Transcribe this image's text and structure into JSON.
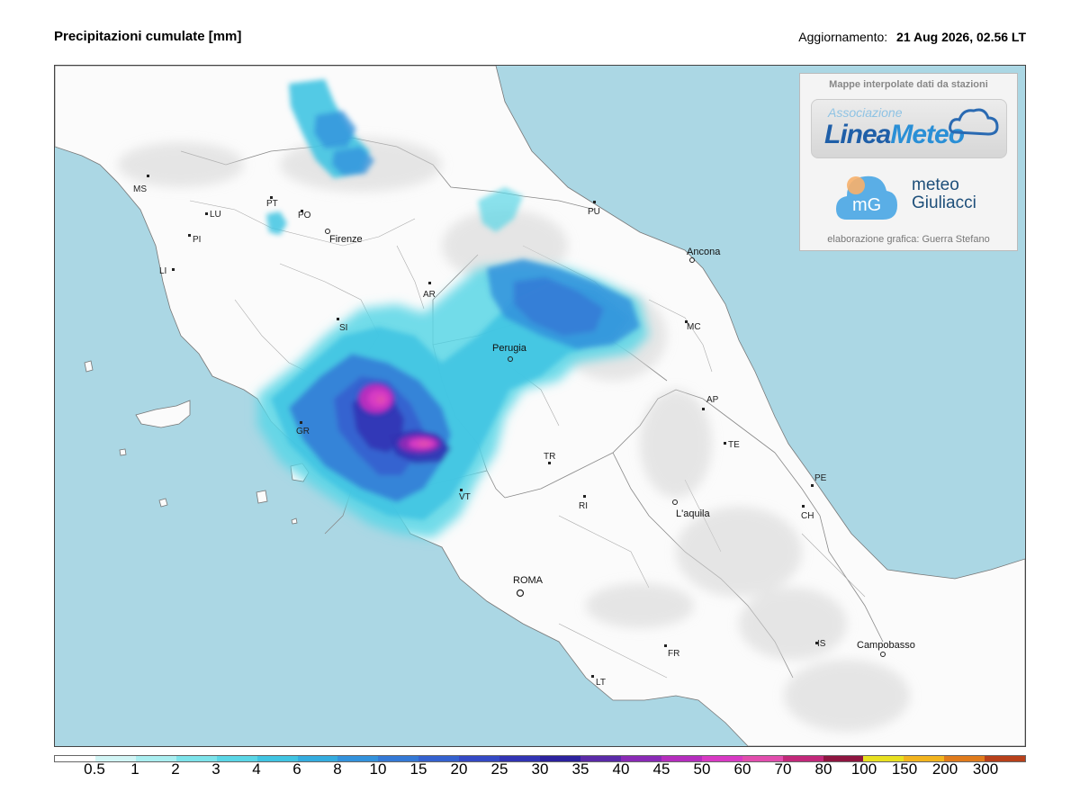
{
  "header": {
    "title": "Precipitazioni cumulate [mm]",
    "update_label": "Aggiornamento:",
    "update_value": "21 Aug 2026, 02.56 LT"
  },
  "infobox": {
    "header": "Mappe interpolate dati da stazioni",
    "logo1_assoc": "Associazione",
    "logo1_linea": "Linea",
    "logo1_meteo": "Meteo",
    "logo2_line1": "meteo",
    "logo2_line2": "Giuliacci",
    "logo2_mark": "mG",
    "credit": "elaborazione grafica: Guerra Stefano"
  },
  "map": {
    "sea_color": "#abd7e4",
    "land_color": "#fbfbfb",
    "cities": [
      {
        "name": "MS"
      },
      {
        "name": "LU"
      },
      {
        "name": "PT"
      },
      {
        "name": "PO"
      },
      {
        "name": "PI"
      },
      {
        "name": "LI"
      },
      {
        "name": "Firenze"
      },
      {
        "name": "AR"
      },
      {
        "name": "SI"
      },
      {
        "name": "GR"
      },
      {
        "name": "Perugia"
      },
      {
        "name": "PU"
      },
      {
        "name": "Ancona"
      },
      {
        "name": "MC"
      },
      {
        "name": "AP"
      },
      {
        "name": "TE"
      },
      {
        "name": "TR"
      },
      {
        "name": "VT"
      },
      {
        "name": "RI"
      },
      {
        "name": "L'aquila"
      },
      {
        "name": "PE"
      },
      {
        "name": "CH"
      },
      {
        "name": "ROMA"
      },
      {
        "name": "FR"
      },
      {
        "name": "LT"
      },
      {
        "name": "IS"
      },
      {
        "name": "Campobasso"
      }
    ]
  },
  "legend": {
    "labels": [
      "0.5",
      "1",
      "2",
      "3",
      "4",
      "6",
      "8",
      "10",
      "15",
      "20",
      "25",
      "30",
      "35",
      "40",
      "45",
      "50",
      "60",
      "70",
      "80",
      "100",
      "150",
      "200",
      "300"
    ],
    "colors": [
      "#ffffff",
      "#d2f5f5",
      "#aaeef0",
      "#7de3ea",
      "#5ad6e6",
      "#40c4e2",
      "#34acdf",
      "#3392dc",
      "#3479d6",
      "#3461cf",
      "#3449c5",
      "#3134b4",
      "#2c229e",
      "#5a2aa8",
      "#8a2ab6",
      "#b52dbe",
      "#d83ac4",
      "#e24eae",
      "#c2287a",
      "#8e1540",
      "#e8e020",
      "#f2b41e",
      "#e07b1c",
      "#b8401a"
    ]
  }
}
